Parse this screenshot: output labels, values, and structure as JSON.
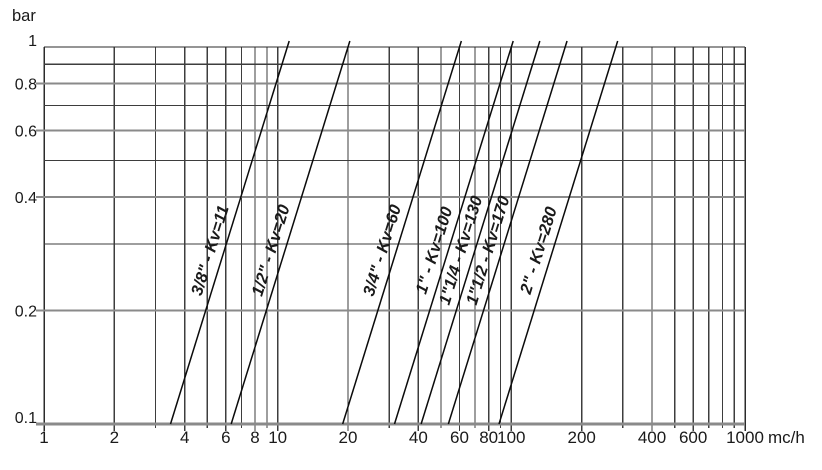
{
  "page": {
    "background": "#ffffff"
  },
  "chart_data": {
    "type": "line",
    "title": "",
    "xlabel": "mc/h",
    "ylabel": "bar",
    "x_scale": "log",
    "y_scale": "log",
    "xlim": [
      1,
      1000
    ],
    "ylim": [
      0.1,
      1
    ],
    "grid": true,
    "legend_position": "labels-on-lines",
    "x_gridlines": [
      1,
      2,
      3,
      4,
      5,
      6,
      7,
      8,
      9,
      10,
      20,
      30,
      40,
      50,
      60,
      70,
      80,
      90,
      100,
      200,
      300,
      400,
      500,
      600,
      700,
      800,
      900,
      1000
    ],
    "y_gridlines": [
      0.1,
      0.2,
      0.3,
      0.4,
      0.5,
      0.6,
      0.7,
      0.8,
      0.9,
      1
    ],
    "x_tick_labels": [
      "1",
      "2",
      "4",
      "6",
      "8",
      "10",
      "20",
      "40",
      "60",
      "80",
      "100",
      "200",
      "400",
      "600",
      "1000"
    ],
    "y_tick_labels": [
      "1",
      "0.8",
      "0.6",
      "0.4",
      "0.2",
      "0.1"
    ],
    "model": "dp_bar = (flow_mch / Kv)^2",
    "series": [
      {
        "label": "3/8\" - Kv=11",
        "pipe_size": "3/8\"",
        "kv": 11,
        "points": [
          {
            "flow_mch": 3.48,
            "dp_bar": 0.1
          },
          {
            "flow_mch": 11,
            "dp_bar": 1
          }
        ]
      },
      {
        "label": "1/2\" - Kv=20",
        "pipe_size": "1/2\"",
        "kv": 20,
        "points": [
          {
            "flow_mch": 6.32,
            "dp_bar": 0.1
          },
          {
            "flow_mch": 20,
            "dp_bar": 1
          }
        ]
      },
      {
        "label": "3/4\" - Kv=60",
        "pipe_size": "3/4\"",
        "kv": 60,
        "points": [
          {
            "flow_mch": 18.97,
            "dp_bar": 0.1
          },
          {
            "flow_mch": 60,
            "dp_bar": 1
          }
        ]
      },
      {
        "label": "1\" - Kv=100",
        "pipe_size": "1\"",
        "kv": 100,
        "points": [
          {
            "flow_mch": 31.62,
            "dp_bar": 0.1
          },
          {
            "flow_mch": 100,
            "dp_bar": 1
          }
        ]
      },
      {
        "label": "1\"1/4 - Kv=130",
        "pipe_size": "1\"1/4",
        "kv": 130,
        "points": [
          {
            "flow_mch": 41.11,
            "dp_bar": 0.1
          },
          {
            "flow_mch": 130,
            "dp_bar": 1
          }
        ]
      },
      {
        "label": "1\"1/2 - Kv=170",
        "pipe_size": "1\"1/2",
        "kv": 170,
        "points": [
          {
            "flow_mch": 53.76,
            "dp_bar": 0.1
          },
          {
            "flow_mch": 170,
            "dp_bar": 1
          }
        ]
      },
      {
        "label": "2\" - Kv=280",
        "pipe_size": "2\"",
        "kv": 280,
        "points": [
          {
            "flow_mch": 88.54,
            "dp_bar": 0.1
          },
          {
            "flow_mch": 280,
            "dp_bar": 1
          }
        ]
      }
    ],
    "colors": {
      "line": "#0b0b0b",
      "grid_minor": "#3d3d3d",
      "grid_major": "#8a8a8a",
      "border": "#2b2b2b",
      "text": "#1a1a1a"
    }
  }
}
